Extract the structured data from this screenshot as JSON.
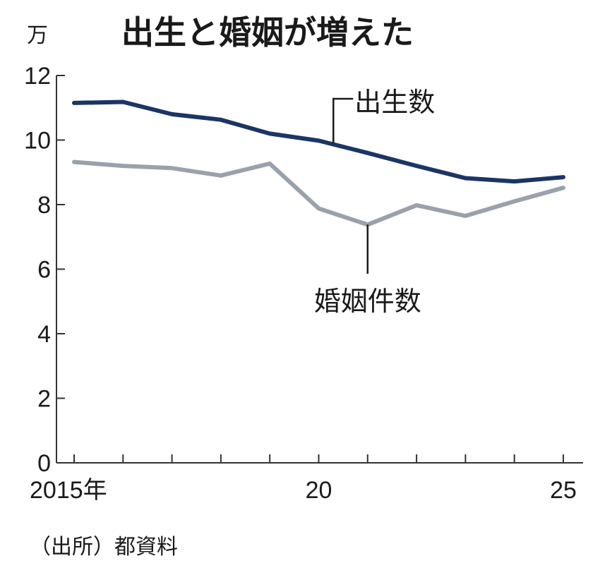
{
  "chart_data": {
    "type": "line",
    "title": "出生と婚姻が増えた",
    "unit_label": "万",
    "x": [
      2015,
      2016,
      2017,
      2018,
      2019,
      2020,
      2021,
      2022,
      2023,
      2024,
      2025
    ],
    "xlim": [
      2015,
      2025
    ],
    "x_tick_labels": [
      {
        "x": 2015,
        "label": "2015年"
      },
      {
        "x": 2020,
        "label": "20"
      },
      {
        "x": 2025,
        "label": "25"
      }
    ],
    "ylim": [
      0,
      12
    ],
    "y_ticks": [
      0,
      2,
      4,
      6,
      8,
      10,
      12
    ],
    "y_tick_labels": [
      "0",
      "2",
      "4",
      "6",
      "8",
      "10",
      "12"
    ],
    "series": [
      {
        "name": "出生数",
        "color": "#1b3564",
        "values": [
          11.15,
          11.18,
          10.8,
          10.63,
          10.2,
          9.98,
          9.6,
          9.2,
          8.82,
          8.72,
          8.85
        ]
      },
      {
        "name": "婚姻件数",
        "color": "#9aa1aa",
        "values": [
          9.32,
          9.2,
          9.13,
          8.9,
          9.27,
          7.88,
          7.38,
          7.98,
          7.65,
          8.1,
          8.52
        ]
      }
    ],
    "source": "（出所）都資料"
  }
}
